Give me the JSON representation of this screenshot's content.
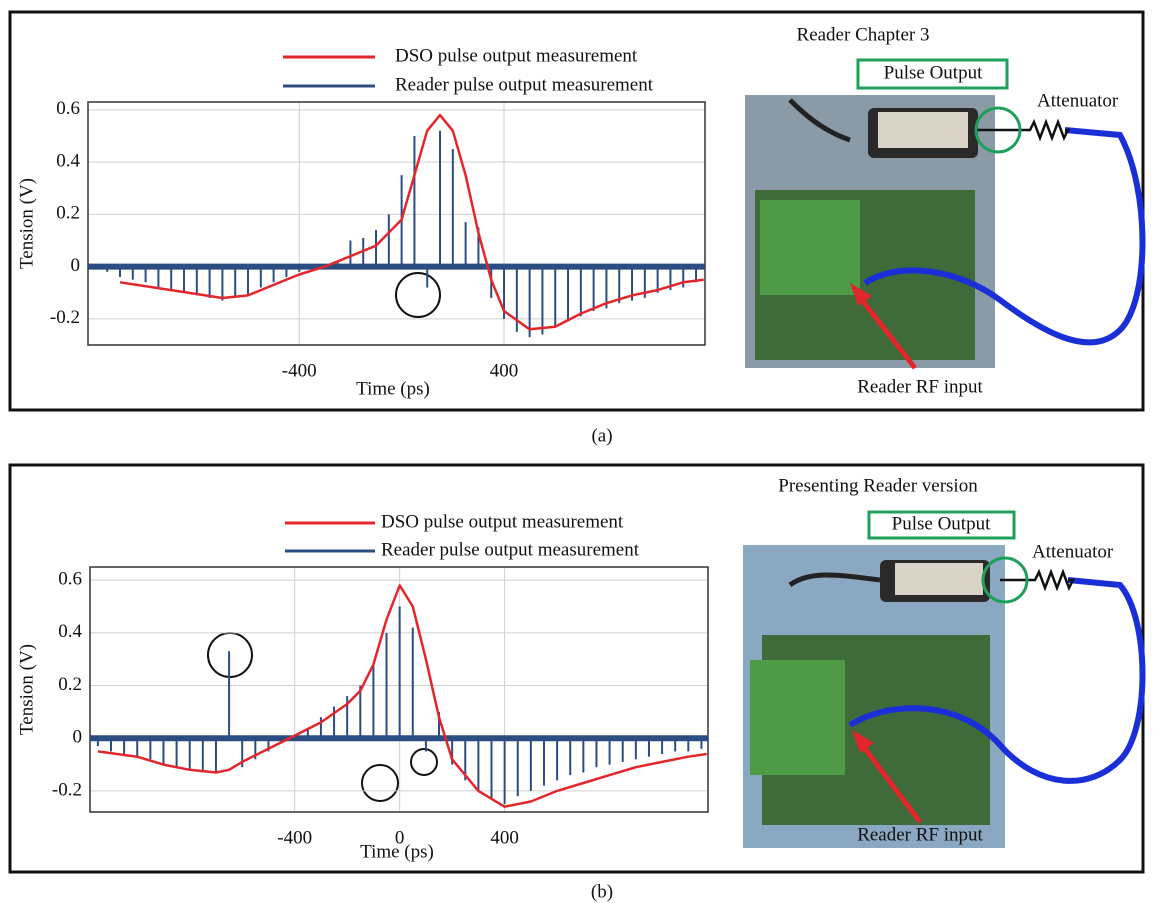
{
  "chart_data": [
    {
      "type": "stem-line",
      "caption": "(a)",
      "annotations": [
        "Reader Chapter 3",
        "Pulse Output",
        "Attenuator",
        "Reader RF input"
      ],
      "x_label": "Time (ps)",
      "y_label": "Tension (V)",
      "xlim": [
        -1225,
        1185
      ],
      "ylim": [
        -0.3,
        0.63
      ],
      "xticks": [
        -400,
        400
      ],
      "yticks": [
        -0.2,
        0,
        0.2,
        0.4,
        0.6
      ],
      "grid": true,
      "series": [
        {
          "name": "DSO pulse output measurement",
          "color": "#e3262b",
          "kind": "line",
          "x": [
            -1100,
            -900,
            -700,
            -600,
            -500,
            -400,
            -300,
            -200,
            -100,
            0,
            50,
            100,
            150,
            200,
            250,
            300,
            350,
            400,
            500,
            600,
            700,
            800,
            900,
            1000,
            1100,
            1180
          ],
          "values": [
            -0.06,
            -0.09,
            -0.12,
            -0.11,
            -0.07,
            -0.03,
            0.0,
            0.04,
            0.08,
            0.18,
            0.35,
            0.52,
            0.58,
            0.52,
            0.35,
            0.13,
            -0.05,
            -0.17,
            -0.24,
            -0.23,
            -0.18,
            -0.14,
            -0.11,
            -0.09,
            -0.06,
            -0.05
          ]
        },
        {
          "name": "Reader pulse output measurement",
          "color": "#2c4d82",
          "kind": "stem",
          "x": [
            -1150,
            -1100,
            -1050,
            -1000,
            -950,
            -900,
            -850,
            -800,
            -750,
            -700,
            -650,
            -600,
            -550,
            -500,
            -450,
            -400,
            -350,
            -300,
            -250,
            -200,
            -150,
            -100,
            -50,
            0,
            50,
            100,
            150,
            200,
            250,
            300,
            350,
            400,
            450,
            500,
            550,
            600,
            650,
            700,
            750,
            800,
            850,
            900,
            950,
            1000,
            1050,
            1100,
            1150
          ],
          "values": [
            -0.02,
            -0.04,
            -0.05,
            -0.06,
            -0.08,
            -0.09,
            -0.1,
            -0.11,
            -0.12,
            -0.13,
            -0.12,
            -0.11,
            -0.08,
            -0.06,
            -0.04,
            -0.02,
            -0.01,
            0.01,
            0.02,
            0.1,
            0.11,
            0.14,
            0.2,
            0.35,
            0.5,
            -0.08,
            0.52,
            0.45,
            0.17,
            0.15,
            -0.12,
            -0.2,
            -0.25,
            -0.27,
            -0.26,
            -0.23,
            -0.21,
            -0.19,
            -0.17,
            -0.16,
            -0.14,
            -0.13,
            -0.12,
            -0.1,
            -0.09,
            -0.08,
            -0.06
          ]
        }
      ]
    },
    {
      "type": "stem-line",
      "caption": "(b)",
      "annotations": [
        "Presenting Reader version",
        "Pulse Output",
        "Attenuator",
        "Reader RF input"
      ],
      "x_label": "Time (ps)",
      "y_label": "Tension (V)",
      "xlim": [
        -1180,
        1175
      ],
      "ylim": [
        -0.28,
        0.65
      ],
      "xticks": [
        -400,
        0,
        400
      ],
      "yticks": [
        -0.2,
        0,
        0.2,
        0.4,
        0.6
      ],
      "grid": true,
      "series": [
        {
          "name": "DSO pulse output measurement",
          "color": "#e3262b",
          "kind": "line",
          "x": [
            -1150,
            -1000,
            -900,
            -800,
            -700,
            -650,
            -600,
            -500,
            -400,
            -300,
            -200,
            -150,
            -100,
            -50,
            0,
            50,
            100,
            150,
            200,
            300,
            400,
            500,
            600,
            700,
            800,
            900,
            1000,
            1100,
            1170
          ],
          "values": [
            -0.05,
            -0.07,
            -0.1,
            -0.12,
            -0.13,
            -0.12,
            -0.09,
            -0.04,
            0.01,
            0.06,
            0.13,
            0.18,
            0.28,
            0.45,
            0.58,
            0.5,
            0.3,
            0.08,
            -0.08,
            -0.2,
            -0.26,
            -0.24,
            -0.2,
            -0.17,
            -0.14,
            -0.11,
            -0.09,
            -0.07,
            -0.06
          ]
        },
        {
          "name": "Reader pulse output measurement",
          "color": "#2c4d82",
          "kind": "stem",
          "x": [
            -1150,
            -1100,
            -1050,
            -1000,
            -950,
            -900,
            -850,
            -800,
            -750,
            -700,
            -650,
            -600,
            -550,
            -500,
            -450,
            -400,
            -350,
            -300,
            -250,
            -200,
            -150,
            -100,
            -50,
            0,
            50,
            100,
            150,
            200,
            250,
            300,
            350,
            400,
            450,
            500,
            550,
            600,
            650,
            700,
            750,
            800,
            850,
            900,
            950,
            1000,
            1050,
            1100,
            1150
          ],
          "values": [
            -0.03,
            -0.05,
            -0.06,
            -0.07,
            -0.08,
            -0.1,
            -0.11,
            -0.12,
            -0.12,
            -0.13,
            0.33,
            -0.11,
            -0.08,
            -0.05,
            -0.02,
            0.01,
            0.04,
            0.08,
            0.12,
            0.16,
            0.2,
            0.28,
            0.4,
            0.5,
            0.42,
            -0.05,
            0.1,
            -0.1,
            -0.16,
            -0.2,
            -0.23,
            -0.25,
            -0.22,
            -0.2,
            -0.18,
            -0.16,
            -0.14,
            -0.13,
            -0.11,
            -0.1,
            -0.09,
            -0.08,
            -0.07,
            -0.06,
            -0.05,
            -0.05,
            -0.04
          ]
        }
      ]
    }
  ]
}
